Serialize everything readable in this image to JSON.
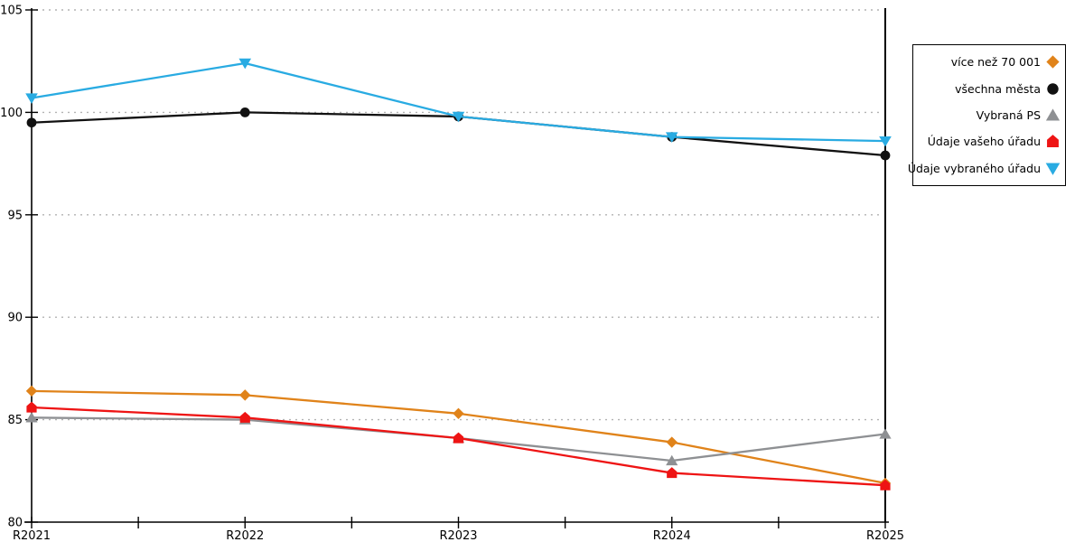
{
  "chart_data": {
    "type": "line",
    "title": "",
    "xlabel": "",
    "ylabel": "",
    "categories": [
      "R2021",
      "R2022",
      "R2023",
      "R2024",
      "R2025"
    ],
    "series": [
      {
        "name": "více než 70 001",
        "marker": "diamond",
        "color": "#e0831a",
        "values": [
          86.4,
          86.2,
          85.3,
          83.9,
          81.9
        ]
      },
      {
        "name": "všechna města",
        "marker": "circle",
        "color": "#111111",
        "values": [
          99.5,
          100.0,
          99.8,
          98.8,
          97.9
        ]
      },
      {
        "name": "Vybraná PS",
        "marker": "triangle-up",
        "color": "#8e9093",
        "values": [
          85.1,
          85.0,
          84.1,
          83.0,
          84.3
        ]
      },
      {
        "name": "Údaje vašeho úřadu",
        "marker": "pentagon",
        "color": "#ee1414",
        "values": [
          85.6,
          85.1,
          84.1,
          82.4,
          81.8
        ]
      },
      {
        "name": "Údaje vybraného úřadu",
        "marker": "triangle-down",
        "color": "#29abe2",
        "values": [
          100.7,
          102.4,
          99.8,
          98.8,
          98.6
        ]
      }
    ],
    "ylim": [
      80,
      105
    ],
    "yticks": [
      80,
      85,
      90,
      95,
      100,
      105
    ],
    "x_minor_ticks": "midpoints",
    "grid": "horizontal-dotted",
    "right_border_line": true,
    "legend_position": "right-outside",
    "colors": {
      "axis": "#000000",
      "grid": "#b3b3b3",
      "background": "#ffffff",
      "tick_label": "#000000"
    }
  }
}
